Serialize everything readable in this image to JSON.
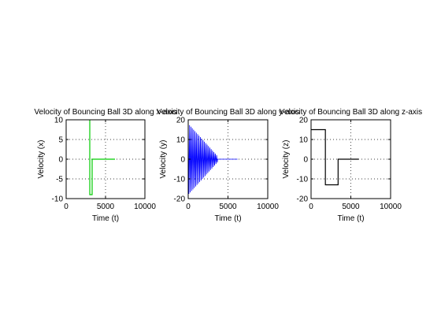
{
  "chart_data": [
    {
      "type": "line",
      "title": "Velocity of Bouncing Ball 3D along x-axis",
      "xlabel": "Time (t)",
      "ylabel": "Velocity (x)",
      "xlim": [
        0,
        10000
      ],
      "ylim": [
        -10,
        10
      ],
      "xticks": [
        0,
        5000,
        10000
      ],
      "yticks": [
        -10,
        -5,
        0,
        5,
        10
      ],
      "grid": true,
      "series": [
        {
          "color": "#00cc00",
          "x": [
            3000,
            3000,
            3300,
            3300,
            6200
          ],
          "y": [
            10,
            -9,
            -9,
            0,
            0
          ]
        }
      ]
    },
    {
      "type": "line",
      "title": "Velocity of Bouncing Ball 3D along y-axis",
      "xlabel": "Time (t)",
      "ylabel": "Velocity (y)",
      "xlim": [
        0,
        10000
      ],
      "ylim": [
        -20,
        20
      ],
      "xticks": [
        0,
        5000,
        10000
      ],
      "yticks": [
        -20,
        -10,
        0,
        10,
        20
      ],
      "grid": true,
      "series": [
        {
          "color": "#0000ff",
          "oscillation": {
            "start": 0,
            "end": 3700,
            "period": 170,
            "amplitude_start": 18,
            "amplitude_end": 1.5,
            "flat_until": 6200
          }
        }
      ]
    },
    {
      "type": "line",
      "title": "Velocity of Bouncing Ball 3D along z-axis",
      "xlabel": "Time (t)",
      "ylabel": "Velocity (z)",
      "xlim": [
        0,
        10000
      ],
      "ylim": [
        -20,
        20
      ],
      "xticks": [
        0,
        5000,
        10000
      ],
      "yticks": [
        -20,
        -10,
        0,
        10,
        20
      ],
      "grid": true,
      "series": [
        {
          "color": "#000000",
          "x": [
            0,
            1800,
            1800,
            3400,
            3400,
            6000
          ],
          "y": [
            15,
            15,
            -13,
            -13,
            0,
            0
          ]
        }
      ]
    }
  ]
}
